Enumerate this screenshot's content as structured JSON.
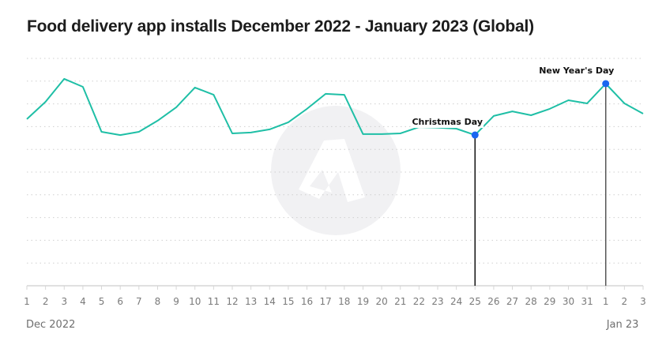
{
  "chart_data": {
    "type": "line",
    "title": "Food delivery app installs December 2022 - January 2023 (Global)",
    "xlabel": "",
    "ylabel": "",
    "y_axis_labels_shown": false,
    "y_units": "relative (gridline index, unlabeled axis)",
    "ylim": [
      0,
      10
    ],
    "grid": true,
    "legend": "none",
    "x": [
      "1",
      "2",
      "3",
      "4",
      "5",
      "6",
      "7",
      "8",
      "9",
      "10",
      "11",
      "12",
      "13",
      "14",
      "15",
      "16",
      "17",
      "18",
      "19",
      "20",
      "21",
      "22",
      "23",
      "24",
      "25",
      "26",
      "27",
      "28",
      "29",
      "30",
      "31",
      "1",
      "2",
      "3"
    ],
    "period_labels": [
      {
        "text": "Dec 2022",
        "at_index": 0
      },
      {
        "text": "Jan 23",
        "at_index": 31
      }
    ],
    "series": [
      {
        "name": "Installs",
        "color": "#1fbfa6",
        "values": [
          7.33,
          8.09,
          9.1,
          8.75,
          6.77,
          6.63,
          6.77,
          7.26,
          7.85,
          8.72,
          8.4,
          6.7,
          6.74,
          6.88,
          7.19,
          7.78,
          8.44,
          8.4,
          6.67,
          6.67,
          6.7,
          6.98,
          6.95,
          6.91,
          6.63,
          7.47,
          7.67,
          7.5,
          7.78,
          8.16,
          8.02,
          8.89,
          8.02,
          7.57
        ]
      }
    ],
    "annotations": [
      {
        "text": "Christmas Day",
        "index": 24,
        "marker_color": "#1a66f0"
      },
      {
        "text": "New Year's Day",
        "index": 31,
        "marker_color": "#1a66f0"
      }
    ]
  },
  "watermark": {
    "icon": "brand-logo-icon"
  }
}
